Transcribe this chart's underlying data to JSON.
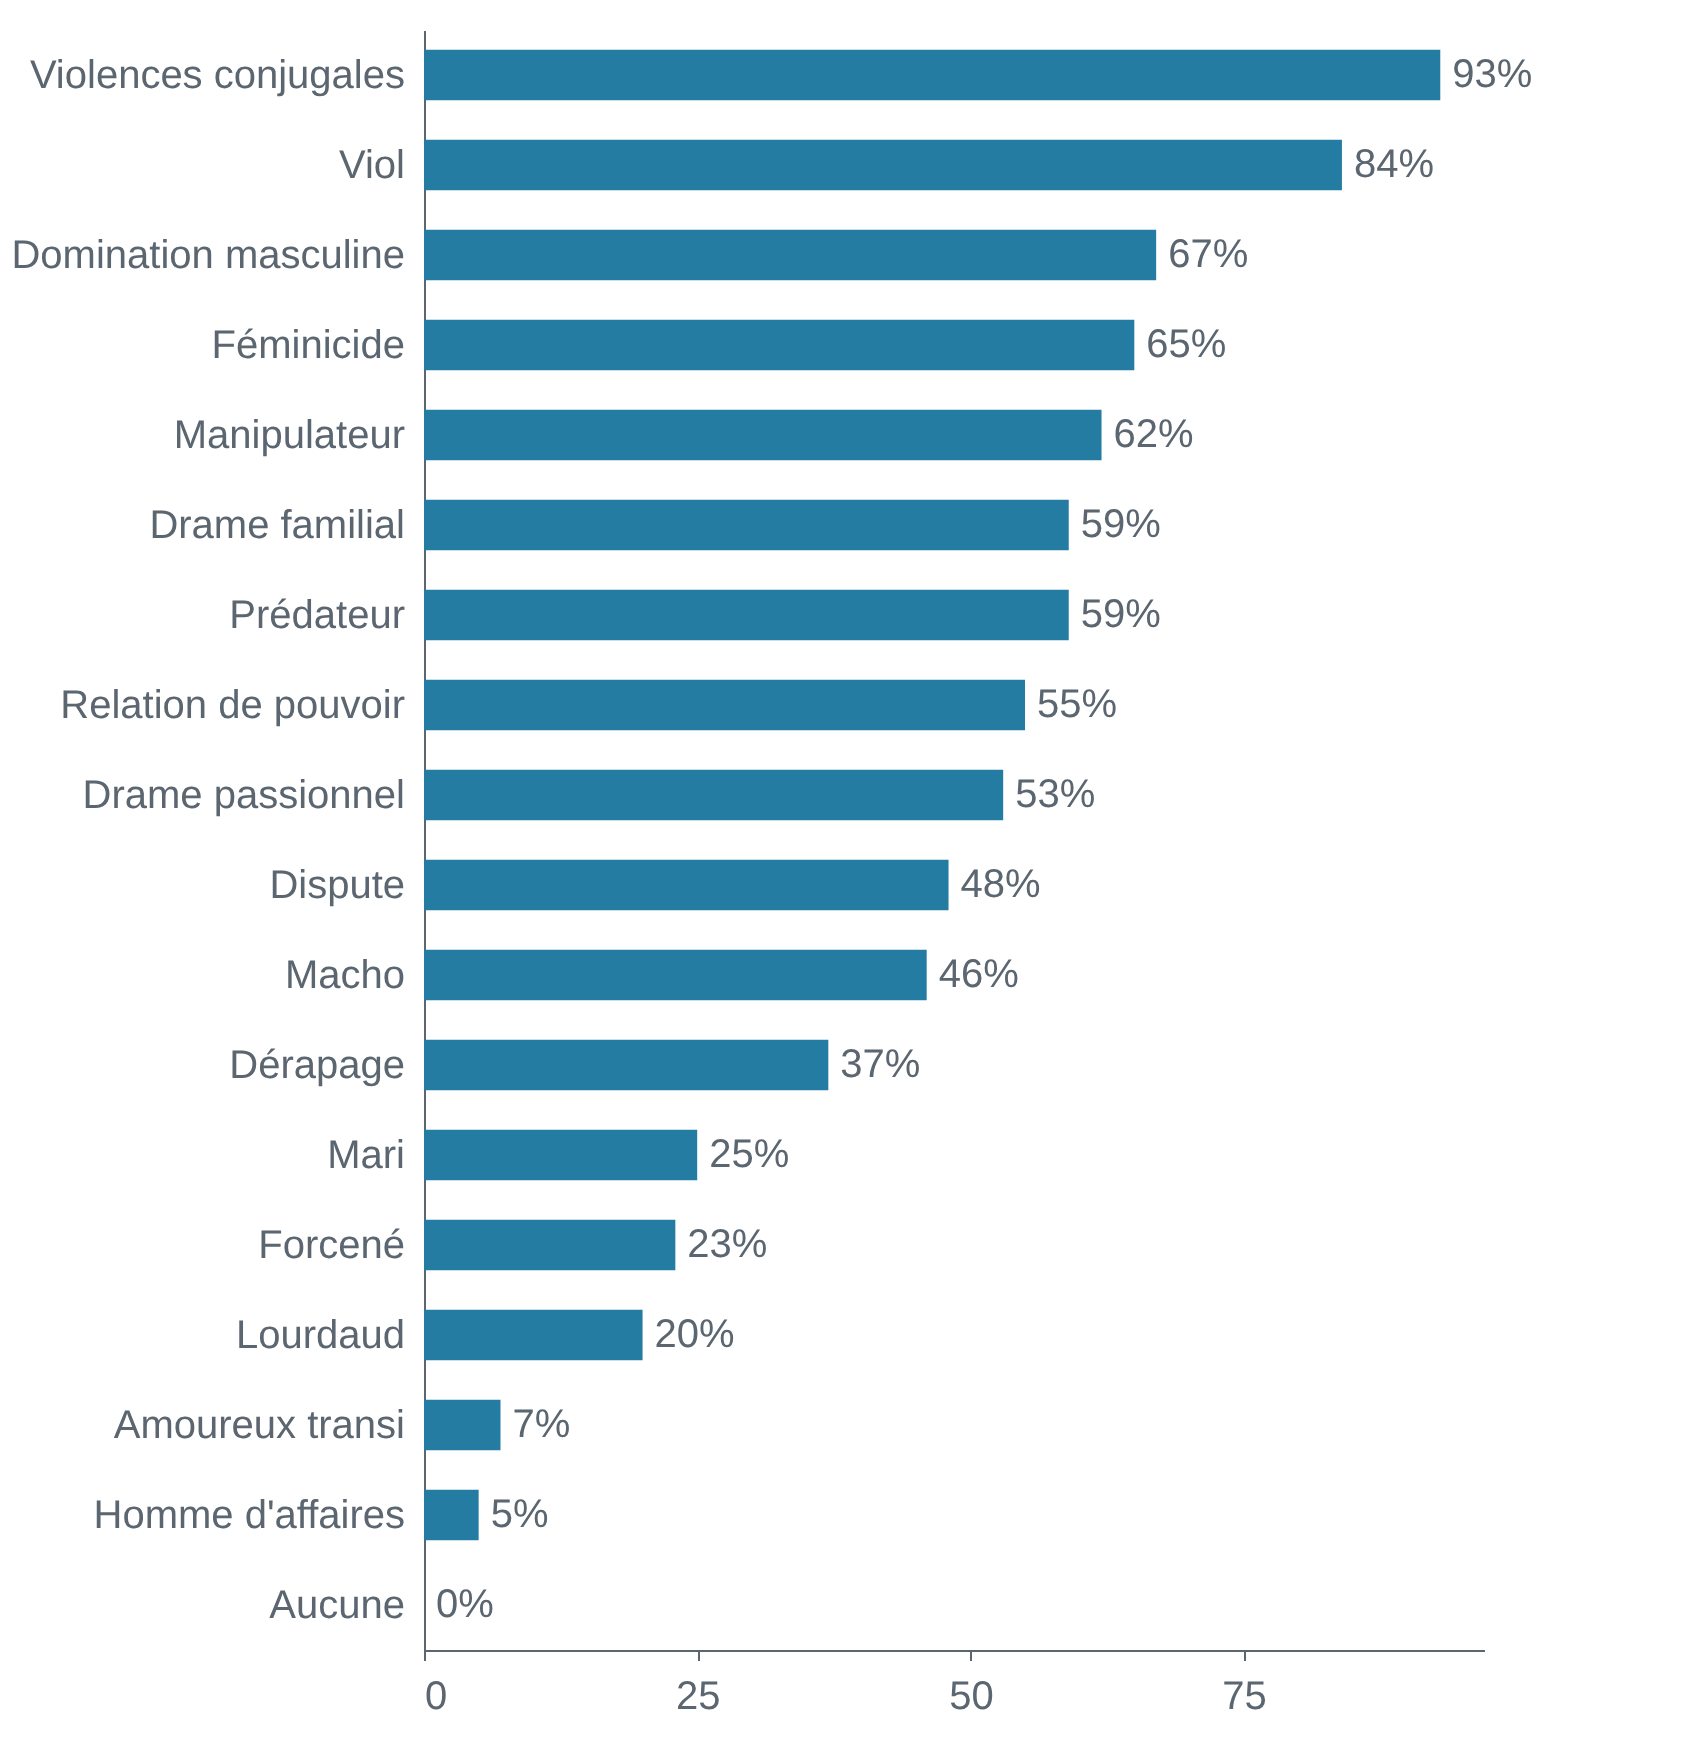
{
  "chart_data": {
    "type": "bar",
    "orientation": "horizontal",
    "categories": [
      "Violences conjugales",
      "Viol",
      "Domination masculine",
      "Féminicide",
      "Manipulateur",
      "Drame familial",
      "Prédateur",
      "Relation de pouvoir",
      "Drame passionnel",
      "Dispute",
      "Macho",
      "Dérapage",
      "Mari",
      "Forcené",
      "Lourdaud",
      "Amoureux transi",
      "Homme d'affaires",
      "Aucune"
    ],
    "values": [
      93,
      84,
      67,
      65,
      62,
      59,
      59,
      55,
      53,
      48,
      46,
      37,
      25,
      23,
      20,
      7,
      5,
      0
    ],
    "value_labels": [
      "93%",
      "84%",
      "67%",
      "65%",
      "62%",
      "59%",
      "59%",
      "55%",
      "53%",
      "48%",
      "46%",
      "37%",
      "25%",
      "23%",
      "20%",
      "7%",
      "5%",
      "0%"
    ],
    "color": "#257ca3",
    "xlim": [
      0,
      97
    ],
    "xticks": [
      0,
      25,
      50,
      75
    ],
    "grid": false
  }
}
